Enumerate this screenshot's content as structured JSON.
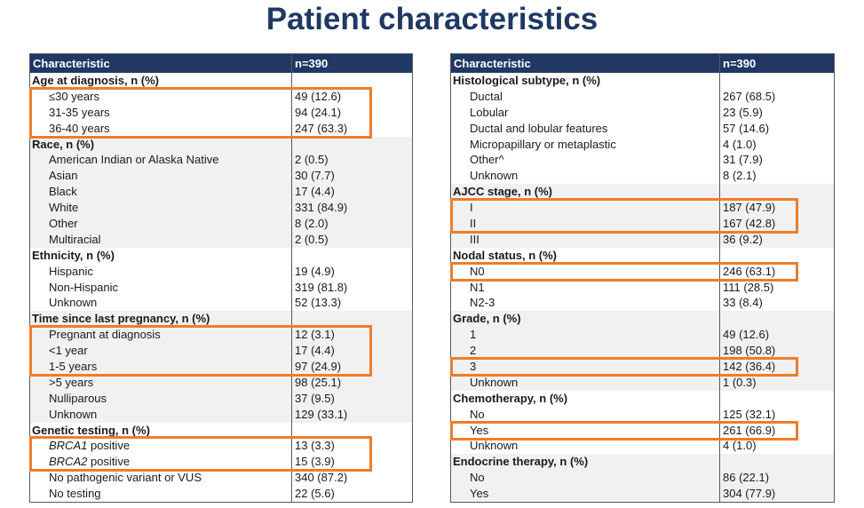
{
  "title": "Patient characteristics",
  "colors": {
    "navy": "#1F3864",
    "orange": "#EE7C2B",
    "band": "#F1F1F2",
    "border": "#595959"
  },
  "tables": [
    {
      "name": "patient-characteristics-left",
      "header": {
        "characteristic": "Characteristic",
        "n": "n=390"
      },
      "sections": [
        {
          "label": "Age at diagnosis, n (%)",
          "shaded": false,
          "rows": [
            {
              "label": "≤30 years",
              "value": "49 (12.6)",
              "hl": 1
            },
            {
              "label": "31-35 years",
              "value": "94 (24.1)",
              "hl": 1
            },
            {
              "label": "36-40 years",
              "value": "247 (63.3)",
              "hl": 1
            }
          ]
        },
        {
          "label": "Race, n (%)",
          "shaded": true,
          "rows": [
            {
              "label": "American Indian or Alaska Native",
              "value": "2 (0.5)"
            },
            {
              "label": "Asian",
              "value": "30 (7.7)"
            },
            {
              "label": "Black",
              "value": "17 (4.4)"
            },
            {
              "label": "White",
              "value": "331 (84.9)"
            },
            {
              "label": "Other",
              "value": "8 (2.0)"
            },
            {
              "label": "Multiracial",
              "value": "2 (0.5)"
            }
          ]
        },
        {
          "label": "Ethnicity, n (%)",
          "shaded": false,
          "rows": [
            {
              "label": "Hispanic",
              "value": "19 (4.9)"
            },
            {
              "label": "Non-Hispanic",
              "value": "319 (81.8)"
            },
            {
              "label": "Unknown",
              "value": "52 (13.3)"
            }
          ]
        },
        {
          "label": "Time since last pregnancy, n (%)",
          "shaded": true,
          "rows": [
            {
              "label": "Pregnant at diagnosis",
              "value": "12 (3.1)",
              "hl": 2
            },
            {
              "label": "<1 year",
              "value": "17 (4.4)",
              "hl": 2
            },
            {
              "label": "1-5 years",
              "value": "97 (24.9)",
              "hl": 2
            },
            {
              "label": ">5 years",
              "value": "98 (25.1)"
            },
            {
              "label": "Nulliparous",
              "value": "37 (9.5)"
            },
            {
              "label": "Unknown",
              "value": "129 (33.1)"
            }
          ]
        },
        {
          "label": "Genetic testing, n (%)",
          "shaded": false,
          "rows": [
            {
              "label_italic": "BRCA1",
              "label": " positive",
              "value": "13 (3.3)",
              "hl": 3
            },
            {
              "label_italic": "BRCA2",
              "label": " positive",
              "value": "15 (3.9)",
              "hl": 3
            },
            {
              "label": "No pathogenic variant or VUS",
              "value": "340 (87.2)"
            },
            {
              "label": "No testing",
              "value": "22 (5.6)"
            }
          ]
        }
      ]
    },
    {
      "name": "patient-characteristics-right",
      "header": {
        "characteristic": "Characteristic",
        "n": "n=390"
      },
      "sections": [
        {
          "label": "Histological subtype, n (%)",
          "shaded": false,
          "rows": [
            {
              "label": "Ductal",
              "value": "267 (68.5)"
            },
            {
              "label": "Lobular",
              "value": "23 (5.9)"
            },
            {
              "label": "Ductal and lobular features",
              "value": "57 (14.6)"
            },
            {
              "label": "Micropapillary or metaplastic",
              "value": "4 (1.0)"
            },
            {
              "label": "Other^",
              "value": "31 (7.9)"
            },
            {
              "label": "Unknown",
              "value": "8 (2.1)"
            }
          ]
        },
        {
          "label": "AJCC stage, n (%)",
          "shaded": true,
          "rows": [
            {
              "label": "I",
              "value": "187 (47.9)",
              "hl": 4
            },
            {
              "label": "II",
              "value": "167 (42.8)",
              "hl": 4
            },
            {
              "label": "III",
              "value": "36 (9.2)"
            }
          ]
        },
        {
          "label": "Nodal status, n (%)",
          "shaded": false,
          "rows": [
            {
              "label": "N0",
              "value": "246 (63.1)",
              "hl": 5
            },
            {
              "label": "N1",
              "value": "111 (28.5)"
            },
            {
              "label": "N2-3",
              "value": "33 (8.4)"
            }
          ]
        },
        {
          "label": "Grade, n (%)",
          "shaded": true,
          "rows": [
            {
              "label": "1",
              "value": "49 (12.6)"
            },
            {
              "label": "2",
              "value": "198 (50.8)"
            },
            {
              "label": "3",
              "value": "142 (36.4)",
              "hl": 6
            },
            {
              "label": "Unknown",
              "value": "1 (0.3)"
            }
          ]
        },
        {
          "label": "Chemotherapy, n (%)",
          "shaded": false,
          "rows": [
            {
              "label": "No",
              "value": "125 (32.1)"
            },
            {
              "label": "Yes",
              "value": "261 (66.9)",
              "hl": 7
            },
            {
              "label": "Unknown",
              "value": "4 (1.0)"
            }
          ]
        },
        {
          "label": "Endocrine therapy, n (%)",
          "shaded": true,
          "rows": [
            {
              "label": "No",
              "value": "86 (22.1)"
            },
            {
              "label": "Yes",
              "value": "304 (77.9)"
            }
          ]
        }
      ]
    }
  ]
}
